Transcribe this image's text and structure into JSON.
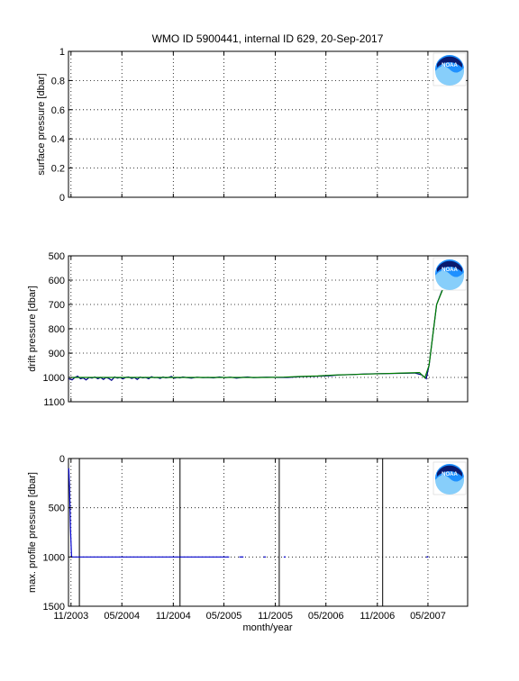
{
  "chart_data": {
    "title": "WMO ID 5900441, internal ID 629, 20-Sep-2017",
    "x_tick_labels": [
      "11/2003",
      "05/2004",
      "11/2004",
      "05/2005",
      "11/2005",
      "05/2006",
      "11/2006",
      "05/2007"
    ],
    "x_ticks": [
      "2003-11-01",
      "2004-05-01",
      "2004-11-01",
      "2005-05-01",
      "2005-11-01",
      "2006-05-01",
      "2006-11-01",
      "2007-05-01"
    ],
    "xlim": [
      "2003-10-23",
      "2007-09-20"
    ],
    "xlabel": "month/year",
    "logo_label": "NOAA",
    "panels": [
      {
        "type": "line",
        "ylabel": "surface pressure [dbar]",
        "ylim": [
          0,
          1
        ],
        "yticks": [
          0,
          0.2,
          0.4,
          0.6,
          0.8,
          1
        ],
        "ytick_labels": [
          "0",
          "0.2",
          "0.4",
          "0.6",
          "0.8",
          "1"
        ],
        "y_reversed": false,
        "grid": true,
        "series": []
      },
      {
        "type": "line",
        "ylabel": "drift pressure [dbar]",
        "ylim": [
          500,
          1100
        ],
        "yticks": [
          500,
          600,
          700,
          800,
          900,
          1000,
          1100
        ],
        "ytick_labels": [
          "500",
          "600",
          "700",
          "800",
          "900",
          "1000",
          "1100"
        ],
        "y_reversed": true,
        "grid": true,
        "series": [
          {
            "color": "#00008b",
            "points": [
              [
                "2003-10-24",
                1005
              ],
              [
                "2003-11-05",
                1010
              ],
              [
                "2003-11-15",
                1000
              ],
              [
                "2003-11-25",
                995
              ],
              [
                "2003-12-05",
                1005
              ],
              [
                "2003-12-15",
                1002
              ],
              [
                "2003-12-25",
                1010
              ],
              [
                "2004-01-05",
                1000
              ],
              [
                "2004-01-15",
                1003
              ],
              [
                "2004-01-25",
                998
              ],
              [
                "2004-02-05",
                1005
              ],
              [
                "2004-02-15",
                1000
              ],
              [
                "2004-02-25",
                1008
              ],
              [
                "2004-03-05",
                1000
              ],
              [
                "2004-03-15",
                1004
              ],
              [
                "2004-03-25",
                1012
              ],
              [
                "2004-04-05",
                998
              ],
              [
                "2004-04-15",
                1003
              ],
              [
                "2004-04-25",
                1000
              ],
              [
                "2004-05-05",
                1006
              ],
              [
                "2004-05-15",
                1000
              ],
              [
                "2004-05-25",
                998
              ],
              [
                "2004-06-05",
                1004
              ],
              [
                "2004-06-15",
                1000
              ],
              [
                "2004-06-25",
                1008
              ],
              [
                "2004-07-05",
                999
              ],
              [
                "2004-07-15",
                1002
              ],
              [
                "2004-07-25",
                1000
              ],
              [
                "2004-08-05",
                1005
              ],
              [
                "2004-08-15",
                997
              ],
              [
                "2004-08-25",
                1001
              ],
              [
                "2004-09-05",
                1000
              ],
              [
                "2004-09-15",
                1004
              ],
              [
                "2004-09-25",
                998
              ],
              [
                "2004-10-05",
                1002
              ],
              [
                "2004-10-15",
                1000
              ],
              [
                "2004-10-25",
                996
              ],
              [
                "2004-11-05",
                1003
              ],
              [
                "2004-11-15",
                1000
              ],
              [
                "2004-11-25",
                1002
              ],
              [
                "2004-12-05",
                998
              ],
              [
                "2004-12-15",
                1000
              ],
              [
                "2005-01-05",
                1003
              ],
              [
                "2005-01-25",
                999
              ],
              [
                "2005-02-15",
                1001
              ],
              [
                "2005-03-05",
                1000
              ],
              [
                "2005-03-25",
                1002
              ],
              [
                "2005-04-15",
                998
              ],
              [
                "2005-05-05",
                1001
              ],
              [
                "2005-05-25",
                999
              ],
              [
                "2005-06-15",
                1003
              ],
              [
                "2005-07-05",
                1000
              ],
              [
                "2005-07-25",
                998
              ],
              [
                "2005-08-15",
                1001
              ],
              [
                "2005-09-05",
                1000
              ],
              [
                "2005-10-01",
                999
              ],
              [
                "2005-11-01",
                1000
              ],
              [
                "2005-12-15",
                1000
              ],
              [
                "2006-02-01",
                997
              ],
              [
                "2006-04-01",
                995
              ],
              [
                "2006-05-15",
                993
              ],
              [
                "2006-06-15",
                990
              ],
              [
                "2006-08-01",
                988
              ],
              [
                "2006-09-15",
                986
              ],
              [
                "2006-11-01",
                985
              ],
              [
                "2006-12-15",
                984
              ],
              [
                "2007-02-01",
                983
              ],
              [
                "2007-03-15",
                982
              ],
              [
                "2007-04-10",
                990
              ],
              [
                "2007-04-25",
                1005
              ],
              [
                "2007-05-05",
                950
              ],
              [
                "2007-06-01",
                700
              ],
              [
                "2007-07-01",
                610
              ]
            ]
          },
          {
            "color": "#008000",
            "points": [
              [
                "2003-10-24",
                1000
              ],
              [
                "2003-12-01",
                1000
              ],
              [
                "2004-02-01",
                1000
              ],
              [
                "2004-04-01",
                1000
              ],
              [
                "2004-06-01",
                1000
              ],
              [
                "2004-08-01",
                1000
              ],
              [
                "2004-10-01",
                1000
              ],
              [
                "2004-12-01",
                1000
              ],
              [
                "2005-02-01",
                1000
              ],
              [
                "2005-04-01",
                1000
              ],
              [
                "2005-06-01",
                1000
              ],
              [
                "2005-08-01",
                1000
              ],
              [
                "2005-10-01",
                1000
              ],
              [
                "2005-12-01",
                999
              ],
              [
                "2006-02-01",
                996
              ],
              [
                "2006-04-01",
                994
              ],
              [
                "2006-06-01",
                990
              ],
              [
                "2006-08-01",
                988
              ],
              [
                "2006-10-01",
                986
              ],
              [
                "2006-12-01",
                984
              ],
              [
                "2007-02-01",
                982
              ],
              [
                "2007-04-01",
                980
              ],
              [
                "2007-04-20",
                1002
              ],
              [
                "2007-05-05",
                950
              ],
              [
                "2007-06-01",
                700
              ],
              [
                "2007-07-01",
                615
              ]
            ]
          }
        ]
      },
      {
        "type": "line",
        "ylabel": "max. profile pressure [dbar]",
        "ylim": [
          0,
          1500
        ],
        "yticks": [
          0,
          500,
          1000,
          1500
        ],
        "ytick_labels": [
          "0",
          "500",
          "1000",
          "1500"
        ],
        "y_reversed": true,
        "grid": true,
        "vlines": [
          "2003-12-01",
          "2004-11-25",
          "2005-11-15",
          "2006-11-20"
        ],
        "series": [
          {
            "color": "#0000cd",
            "points": [
              [
                "2003-10-24",
                100
              ],
              [
                "2003-10-27",
                300
              ],
              [
                "2003-10-30",
                700
              ],
              [
                "2003-11-03",
                1000
              ],
              [
                "2003-12-01",
                1000
              ],
              [
                "2004-02-01",
                1000
              ],
              [
                "2004-04-01",
                1000
              ],
              [
                "2004-06-01",
                1000
              ],
              [
                "2004-08-01",
                1000
              ],
              [
                "2004-10-01",
                1000
              ],
              [
                "2004-12-01",
                1000
              ],
              [
                "2005-02-01",
                1000
              ],
              [
                "2005-04-01",
                1000
              ],
              [
                "2005-05-20",
                1000
              ]
            ]
          },
          {
            "color": "#0000cd",
            "points": [
              [
                "2005-06-25",
                1000
              ],
              [
                "2005-07-10",
                1000
              ]
            ]
          },
          {
            "color": "#0000cd",
            "points": [
              [
                "2005-09-20",
                1000
              ],
              [
                "2005-09-28",
                1000
              ]
            ]
          },
          {
            "color": "#0000cd",
            "points": [
              [
                "2005-12-01",
                1000
              ],
              [
                "2005-12-08",
                1000
              ]
            ]
          },
          {
            "color": "#0000cd",
            "points": [
              [
                "2007-04-25",
                1000
              ],
              [
                "2007-05-02",
                1000
              ]
            ]
          }
        ]
      }
    ]
  }
}
